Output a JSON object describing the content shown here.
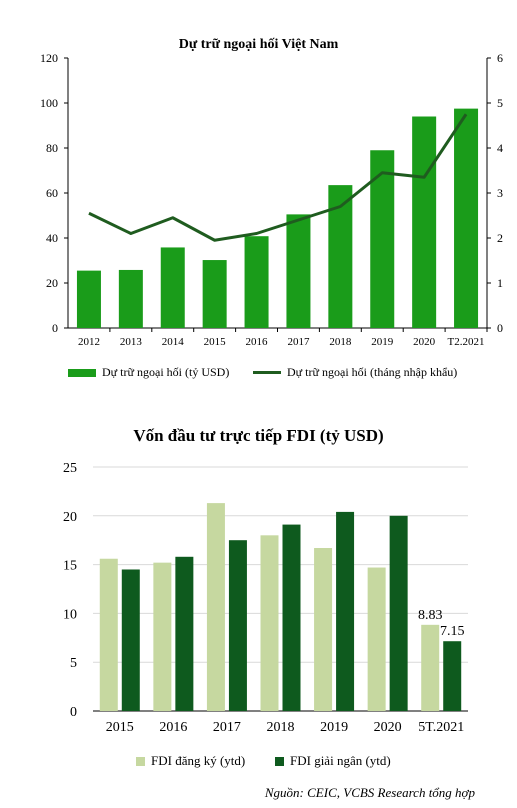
{
  "chart_data": [
    {
      "type": "bar",
      "title": "Dự trữ ngoại hối Việt Nam",
      "categories": [
        "2012",
        "2013",
        "2014",
        "2015",
        "2016",
        "2017",
        "2018",
        "2019",
        "2020",
        "T2.2021"
      ],
      "series": [
        {
          "name": "Dự trữ ngoại hối (tỷ USD)",
          "type": "bar",
          "axis": "left",
          "color": "#1a9c1a",
          "values": [
            25.5,
            25.8,
            35.8,
            30.2,
            40.8,
            50.5,
            63.5,
            79,
            94,
            97.5
          ]
        },
        {
          "name": "Dự trữ ngoại hối (tháng nhập khẩu)",
          "type": "line",
          "axis": "right",
          "color": "#1f5c1f",
          "values": [
            2.55,
            2.1,
            2.45,
            1.95,
            2.1,
            2.4,
            2.7,
            3.45,
            3.35,
            4.75
          ]
        }
      ],
      "ylim": [
        0,
        120
      ],
      "yticks": [
        0,
        20,
        40,
        60,
        80,
        100,
        120
      ],
      "y2lim": [
        0,
        6
      ],
      "y2ticks": [
        0,
        1,
        2,
        3,
        4,
        5,
        6
      ],
      "grid": false,
      "legend": "bottom"
    },
    {
      "type": "bar",
      "title": "Vốn đầu tư trực tiếp FDI (tỷ USD)",
      "categories": [
        "2015",
        "2016",
        "2017",
        "2018",
        "2019",
        "2020",
        "5T.2021"
      ],
      "series": [
        {
          "name": "FDI đăng ký (ytd)",
          "color": "#c6d8a0",
          "values": [
            15.6,
            15.2,
            21.3,
            18,
            16.7,
            14.7,
            8.83
          ]
        },
        {
          "name": "FDI giải ngân (ytd)",
          "color": "#0e5a1e",
          "values": [
            14.5,
            15.8,
            17.5,
            19.1,
            20.4,
            20,
            7.15
          ]
        }
      ],
      "ylim": [
        0,
        25
      ],
      "yticks": [
        0,
        5,
        10,
        15,
        20,
        25
      ],
      "grid": true,
      "legend": "bottom",
      "data_labels": [
        "8.83",
        "7.15"
      ]
    }
  ],
  "source": "Nguồn: CEIC, VCBS Research tổng hợp"
}
